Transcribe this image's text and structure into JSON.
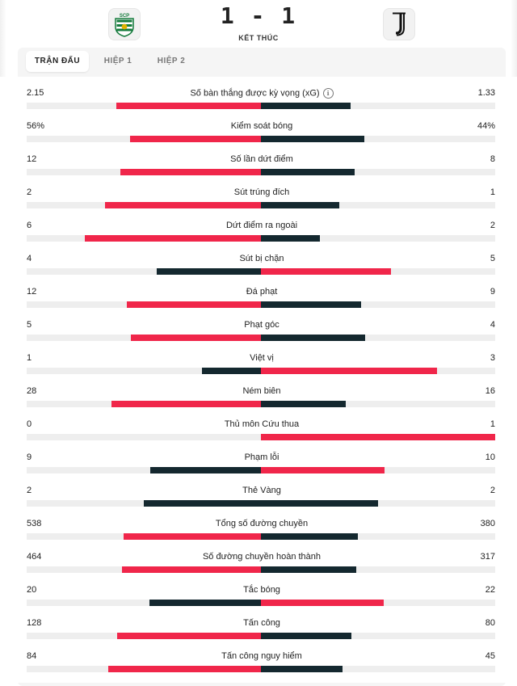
{
  "colors": {
    "red": "#f0264a",
    "dark": "#14282f",
    "track": "#eeeeee"
  },
  "header": {
    "score": "1 - 1",
    "status": "KẾT THÚC",
    "home_crest_text": "SCP",
    "home_crest_icon": "sporting-cp-crest-icon",
    "away_crest_icon": "juventus-crest-icon"
  },
  "tabs": [
    {
      "label": "TRẬN ĐẤU",
      "active": true
    },
    {
      "label": "HIỆP 1",
      "active": false
    },
    {
      "label": "HIỆP 2",
      "active": false
    }
  ],
  "stats": [
    {
      "label": "Số bàn thắng được kỳ vọng (xG)",
      "home": "2.15",
      "away": "1.33",
      "home_value": 2.15,
      "away_value": 1.33,
      "leader": "home",
      "info_icon": "ℹ"
    },
    {
      "label": "Kiểm soát bóng",
      "home": "56%",
      "away": "44%",
      "home_value": 56,
      "away_value": 44,
      "leader": "home"
    },
    {
      "label": "Số lần dứt điểm",
      "home": "12",
      "away": "8",
      "home_value": 12,
      "away_value": 8,
      "leader": "home"
    },
    {
      "label": "Sút trúng đích",
      "home": "2",
      "away": "1",
      "home_value": 2,
      "away_value": 1,
      "leader": "home"
    },
    {
      "label": "Dứt điểm ra ngoài",
      "home": "6",
      "away": "2",
      "home_value": 6,
      "away_value": 2,
      "leader": "home"
    },
    {
      "label": "Sút bị chặn",
      "home": "4",
      "away": "5",
      "home_value": 4,
      "away_value": 5,
      "leader": "away"
    },
    {
      "label": "Đá phạt",
      "home": "12",
      "away": "9",
      "home_value": 12,
      "away_value": 9,
      "leader": "home"
    },
    {
      "label": "Phạt góc",
      "home": "5",
      "away": "4",
      "home_value": 5,
      "away_value": 4,
      "leader": "home"
    },
    {
      "label": "Việt vị",
      "home": "1",
      "away": "3",
      "home_value": 1,
      "away_value": 3,
      "leader": "away"
    },
    {
      "label": "Ném biên",
      "home": "28",
      "away": "16",
      "home_value": 28,
      "away_value": 16,
      "leader": "home"
    },
    {
      "label": "Thủ môn Cứu thua",
      "home": "0",
      "away": "1",
      "home_value": 0,
      "away_value": 1,
      "leader": "away"
    },
    {
      "label": "Phạm lỗi",
      "home": "9",
      "away": "10",
      "home_value": 9,
      "away_value": 10,
      "leader": "away"
    },
    {
      "label": "Thẻ Vàng",
      "home": "2",
      "away": "2",
      "home_value": 2,
      "away_value": 2,
      "leader": "none"
    },
    {
      "label": "Tổng số đường chuyền",
      "home": "538",
      "away": "380",
      "home_value": 538,
      "away_value": 380,
      "leader": "home"
    },
    {
      "label": "Số đường chuyền hoàn thành",
      "home": "464",
      "away": "317",
      "home_value": 464,
      "away_value": 317,
      "leader": "home"
    },
    {
      "label": "Tắc bóng",
      "home": "20",
      "away": "22",
      "home_value": 20,
      "away_value": 22,
      "leader": "away"
    },
    {
      "label": "Tấn công",
      "home": "128",
      "away": "80",
      "home_value": 128,
      "away_value": 80,
      "leader": "home"
    },
    {
      "label": "Tấn công nguy hiểm",
      "home": "84",
      "away": "45",
      "home_value": 84,
      "away_value": 45,
      "leader": "home"
    }
  ]
}
